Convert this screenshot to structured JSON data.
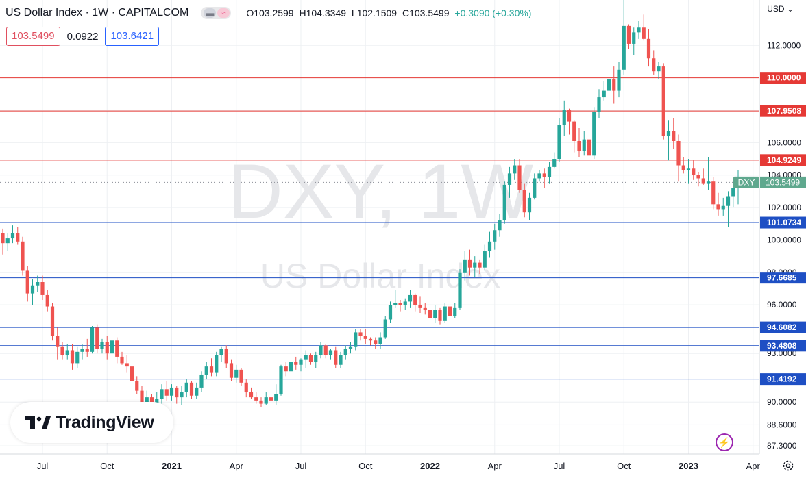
{
  "header": {
    "title": "US Dollar Index · 1W · CAPITALCOM",
    "open": "O103.2599",
    "high": "H104.3349",
    "low": "L102.1509",
    "close": "C103.5499",
    "change": "+0.3090 (+0.30%)"
  },
  "toolbar": {
    "bid": "103.5499",
    "spread": "0.0922",
    "ask": "103.6421"
  },
  "currency": "USD",
  "watermark": {
    "symbol": "DXY, 1W",
    "name": "US Dollar Index"
  },
  "brand": "TradingView",
  "last_price_label": {
    "symbol": "DXY",
    "value": "103.5499"
  },
  "colors": {
    "up": "#26a69a",
    "down": "#ef5350",
    "resistance": "#e53935",
    "support": "#1e4fc4",
    "grid": "#eef0f3",
    "axis_text": "#131722"
  },
  "chart_data": {
    "type": "candlestick",
    "ylim": [
      86.8,
      114.8
    ],
    "y_ticks": [
      {
        "value": 112.0,
        "label": "112.0000"
      },
      {
        "value": 108.0,
        "label": "108.0000"
      },
      {
        "value": 106.0,
        "label": "106.0000"
      },
      {
        "value": 104.0,
        "label": "104.0000"
      },
      {
        "value": 102.0,
        "label": "102.0000"
      },
      {
        "value": 100.0,
        "label": "100.0000"
      },
      {
        "value": 98.0,
        "label": "98.0000"
      },
      {
        "value": 96.0,
        "label": "96.0000"
      },
      {
        "value": 93.0,
        "label": "93.0000"
      },
      {
        "value": 90.0,
        "label": "90.0000"
      },
      {
        "value": 88.6,
        "label": "88.6000"
      },
      {
        "value": 87.3,
        "label": "87.3000"
      }
    ],
    "x_ticks": [
      {
        "label": "Jul",
        "week": 8,
        "bold": false
      },
      {
        "label": "Oct",
        "week": 21,
        "bold": false
      },
      {
        "label": "2021",
        "week": 34,
        "bold": true
      },
      {
        "label": "Apr",
        "week": 47,
        "bold": false
      },
      {
        "label": "Jul",
        "week": 60,
        "bold": false
      },
      {
        "label": "Oct",
        "week": 73,
        "bold": false
      },
      {
        "label": "2022",
        "week": 86,
        "bold": true
      },
      {
        "label": "Apr",
        "week": 99,
        "bold": false
      },
      {
        "label": "Jul",
        "week": 112,
        "bold": false
      },
      {
        "label": "Oct",
        "week": 125,
        "bold": false
      },
      {
        "label": "2023",
        "week": 138,
        "bold": true
      },
      {
        "label": "Apr",
        "week": 151,
        "bold": false
      }
    ],
    "levels": [
      {
        "value": 110.0,
        "label": "110.0000",
        "kind": "resistance"
      },
      {
        "value": 107.9508,
        "label": "107.9508",
        "kind": "resistance"
      },
      {
        "value": 104.9249,
        "label": "104.9249",
        "kind": "resistance"
      },
      {
        "value": 101.0734,
        "label": "101.0734",
        "kind": "support"
      },
      {
        "value": 97.6685,
        "label": "97.6685",
        "kind": "support"
      },
      {
        "value": 94.6082,
        "label": "94.6082",
        "kind": "support"
      },
      {
        "value": 93.4808,
        "label": "93.4808",
        "kind": "support"
      },
      {
        "value": 91.4192,
        "label": "91.4192",
        "kind": "support"
      }
    ],
    "last_price": 103.5499,
    "candles": [
      [
        100.4,
        100.7,
        99.1,
        99.8
      ],
      [
        99.8,
        100.4,
        99.3,
        100.1
      ],
      [
        100.1,
        100.9,
        99.8,
        100.4
      ],
      [
        100.4,
        100.8,
        99.7,
        99.9
      ],
      [
        99.9,
        100.2,
        97.8,
        98.1
      ],
      [
        98.1,
        98.4,
        96.2,
        96.7
      ],
      [
        96.7,
        97.6,
        96.0,
        97.2
      ],
      [
        97.2,
        97.8,
        96.8,
        97.4
      ],
      [
        97.4,
        97.8,
        96.3,
        96.6
      ],
      [
        96.6,
        96.9,
        95.6,
        95.9
      ],
      [
        95.9,
        96.1,
        93.8,
        94.1
      ],
      [
        94.1,
        94.6,
        92.6,
        93.4
      ],
      [
        93.4,
        93.7,
        92.6,
        92.9
      ],
      [
        92.9,
        93.6,
        92.6,
        93.2
      ],
      [
        93.2,
        93.6,
        92.0,
        92.4
      ],
      [
        92.4,
        93.4,
        92.1,
        93.1
      ],
      [
        93.1,
        93.6,
        92.6,
        93.3
      ],
      [
        93.3,
        93.9,
        92.8,
        93.1
      ],
      [
        93.1,
        94.7,
        93.0,
        94.6
      ],
      [
        94.6,
        94.8,
        93.0,
        93.3
      ],
      [
        93.3,
        93.9,
        93.0,
        93.7
      ],
      [
        93.7,
        94.1,
        92.6,
        93.0
      ],
      [
        93.0,
        94.0,
        92.6,
        93.8
      ],
      [
        93.8,
        94.0,
        92.4,
        92.8
      ],
      [
        92.8,
        93.1,
        92.3,
        92.4
      ],
      [
        92.4,
        92.9,
        91.8,
        92.2
      ],
      [
        92.2,
        92.5,
        91.0,
        91.3
      ],
      [
        91.3,
        91.6,
        90.5,
        90.7
      ],
      [
        90.7,
        91.0,
        89.5,
        89.8
      ],
      [
        89.8,
        90.7,
        89.5,
        90.3
      ],
      [
        90.3,
        90.5,
        89.6,
        89.9
      ],
      [
        89.9,
        90.6,
        89.5,
        90.2
      ],
      [
        90.2,
        91.1,
        89.9,
        90.8
      ],
      [
        90.8,
        91.3,
        90.1,
        90.4
      ],
      [
        90.4,
        91.1,
        90.1,
        90.9
      ],
      [
        90.9,
        91.0,
        89.9,
        90.3
      ],
      [
        90.3,
        91.0,
        89.8,
        90.6
      ],
      [
        90.6,
        91.4,
        90.3,
        91.2
      ],
      [
        91.2,
        91.3,
        90.2,
        90.4
      ],
      [
        90.4,
        91.2,
        90.2,
        90.9
      ],
      [
        90.9,
        91.9,
        90.6,
        91.7
      ],
      [
        91.7,
        92.5,
        91.4,
        92.2
      ],
      [
        92.2,
        92.7,
        91.6,
        91.8
      ],
      [
        91.8,
        93.1,
        91.6,
        92.9
      ],
      [
        92.9,
        93.4,
        92.5,
        93.3
      ],
      [
        93.3,
        93.5,
        92.1,
        92.4
      ],
      [
        92.4,
        92.6,
        91.3,
        91.5
      ],
      [
        91.5,
        92.3,
        91.2,
        92.0
      ],
      [
        92.0,
        92.1,
        91.0,
        91.2
      ],
      [
        91.2,
        91.4,
        90.3,
        90.6
      ],
      [
        90.6,
        90.9,
        90.2,
        90.3
      ],
      [
        90.3,
        90.6,
        89.9,
        90.1
      ],
      [
        90.1,
        90.3,
        89.7,
        89.9
      ],
      [
        89.9,
        90.6,
        89.8,
        90.3
      ],
      [
        90.3,
        90.6,
        89.9,
        90.1
      ],
      [
        90.1,
        91.1,
        89.8,
        90.5
      ],
      [
        90.5,
        92.3,
        90.4,
        92.2
      ],
      [
        92.2,
        92.5,
        91.6,
        91.9
      ],
      [
        91.9,
        92.7,
        91.9,
        92.5
      ],
      [
        92.5,
        92.8,
        92.0,
        92.3
      ],
      [
        92.3,
        92.7,
        91.9,
        92.6
      ],
      [
        92.6,
        93.2,
        92.1,
        92.9
      ],
      [
        92.9,
        93.0,
        92.3,
        92.5
      ],
      [
        92.5,
        93.1,
        92.1,
        92.9
      ],
      [
        92.9,
        93.7,
        92.7,
        93.5
      ],
      [
        93.5,
        93.6,
        92.7,
        92.9
      ],
      [
        92.9,
        93.3,
        92.6,
        93.2
      ],
      [
        93.2,
        93.4,
        92.1,
        92.3
      ],
      [
        92.3,
        93.1,
        92.1,
        92.9
      ],
      [
        92.9,
        93.5,
        92.6,
        93.3
      ],
      [
        93.3,
        93.7,
        93.0,
        93.4
      ],
      [
        93.4,
        94.5,
        93.2,
        94.3
      ],
      [
        94.3,
        94.5,
        93.8,
        94.1
      ],
      [
        94.1,
        94.5,
        93.6,
        93.9
      ],
      [
        93.9,
        94.0,
        93.5,
        93.8
      ],
      [
        93.8,
        94.0,
        93.3,
        93.6
      ],
      [
        93.6,
        94.3,
        93.3,
        94.0
      ],
      [
        94.0,
        95.3,
        93.9,
        95.1
      ],
      [
        95.1,
        96.2,
        94.9,
        96.0
      ],
      [
        96.0,
        96.9,
        95.8,
        96.1
      ],
      [
        96.1,
        96.3,
        95.6,
        96.0
      ],
      [
        96.0,
        96.4,
        95.7,
        96.2
      ],
      [
        96.2,
        96.9,
        95.8,
        96.6
      ],
      [
        96.6,
        96.7,
        95.6,
        96.0
      ],
      [
        96.0,
        96.5,
        95.5,
        95.8
      ],
      [
        95.8,
        96.1,
        95.4,
        95.7
      ],
      [
        95.7,
        96.2,
        94.6,
        95.2
      ],
      [
        95.2,
        96.0,
        94.9,
        95.7
      ],
      [
        95.7,
        95.8,
        94.8,
        95.0
      ],
      [
        95.0,
        96.1,
        94.9,
        95.9
      ],
      [
        95.9,
        96.2,
        95.1,
        95.3
      ],
      [
        95.3,
        96.1,
        95.2,
        95.8
      ],
      [
        95.8,
        98.2,
        95.7,
        98.0
      ],
      [
        98.0,
        99.3,
        97.5,
        98.8
      ],
      [
        98.8,
        99.4,
        97.8,
        98.3
      ],
      [
        98.3,
        99.0,
        97.7,
        98.6
      ],
      [
        98.6,
        98.8,
        97.9,
        98.3
      ],
      [
        98.3,
        99.7,
        98.1,
        99.3
      ],
      [
        99.3,
        100.5,
        98.9,
        99.9
      ],
      [
        99.9,
        101.0,
        99.4,
        100.6
      ],
      [
        100.6,
        101.6,
        100.2,
        101.2
      ],
      [
        101.2,
        103.6,
        101.0,
        103.4
      ],
      [
        103.4,
        104.5,
        102.6,
        104.1
      ],
      [
        104.1,
        105.0,
        103.7,
        104.6
      ],
      [
        104.6,
        105.0,
        102.9,
        103.1
      ],
      [
        103.1,
        103.5,
        101.4,
        101.7
      ],
      [
        101.7,
        102.9,
        101.2,
        102.6
      ],
      [
        102.6,
        104.1,
        102.5,
        103.8
      ],
      [
        103.8,
        104.3,
        103.6,
        104.1
      ],
      [
        104.1,
        104.4,
        103.2,
        103.9
      ],
      [
        103.9,
        104.8,
        103.5,
        104.5
      ],
      [
        104.5,
        105.4,
        104.4,
        105.0
      ],
      [
        105.0,
        107.5,
        104.8,
        107.1
      ],
      [
        107.1,
        108.6,
        106.4,
        108.0
      ],
      [
        108.0,
        108.1,
        106.5,
        107.3
      ],
      [
        107.3,
        107.4,
        105.4,
        106.1
      ],
      [
        106.1,
        106.9,
        105.1,
        105.5
      ],
      [
        105.5,
        106.7,
        105.2,
        106.2
      ],
      [
        106.2,
        106.8,
        104.9,
        105.2
      ],
      [
        105.2,
        108.2,
        105.0,
        107.9
      ],
      [
        107.9,
        109.3,
        107.5,
        108.8
      ],
      [
        108.8,
        109.8,
        108.6,
        109.2
      ],
      [
        109.2,
        110.3,
        108.9,
        109.9
      ],
      [
        109.9,
        110.7,
        108.4,
        109.2
      ],
      [
        109.2,
        111.0,
        108.8,
        110.5
      ],
      [
        110.5,
        114.8,
        110.2,
        113.2
      ],
      [
        113.2,
        113.3,
        111.8,
        112.1
      ],
      [
        112.1,
        113.1,
        111.4,
        112.8
      ],
      [
        112.8,
        113.5,
        112.4,
        113.1
      ],
      [
        113.1,
        113.9,
        112.3,
        112.4
      ],
      [
        112.4,
        113.0,
        110.7,
        111.2
      ],
      [
        111.2,
        111.7,
        110.2,
        110.4
      ],
      [
        110.4,
        111.0,
        109.9,
        110.7
      ],
      [
        110.7,
        110.9,
        106.2,
        106.4
      ],
      [
        106.4,
        107.4,
        104.9,
        106.7
      ],
      [
        106.7,
        107.5,
        105.6,
        106.1
      ],
      [
        106.1,
        106.5,
        103.6,
        104.6
      ],
      [
        104.6,
        105.1,
        104.1,
        104.3
      ],
      [
        104.3,
        105.0,
        103.5,
        104.4
      ],
      [
        104.4,
        104.9,
        103.7,
        104.0
      ],
      [
        104.0,
        104.2,
        103.3,
        103.8
      ],
      [
        103.8,
        104.4,
        103.4,
        103.5
      ],
      [
        103.5,
        105.1,
        103.1,
        103.6
      ],
      [
        103.6,
        103.9,
        101.9,
        102.2
      ],
      [
        102.2,
        102.9,
        101.5,
        101.9
      ],
      [
        101.9,
        102.6,
        101.5,
        102.1
      ],
      [
        102.1,
        103.0,
        100.8,
        102.7
      ],
      [
        102.7,
        103.4,
        102.0,
        103.2
      ],
      [
        103.2,
        104.3,
        102.2,
        103.5
      ]
    ]
  }
}
